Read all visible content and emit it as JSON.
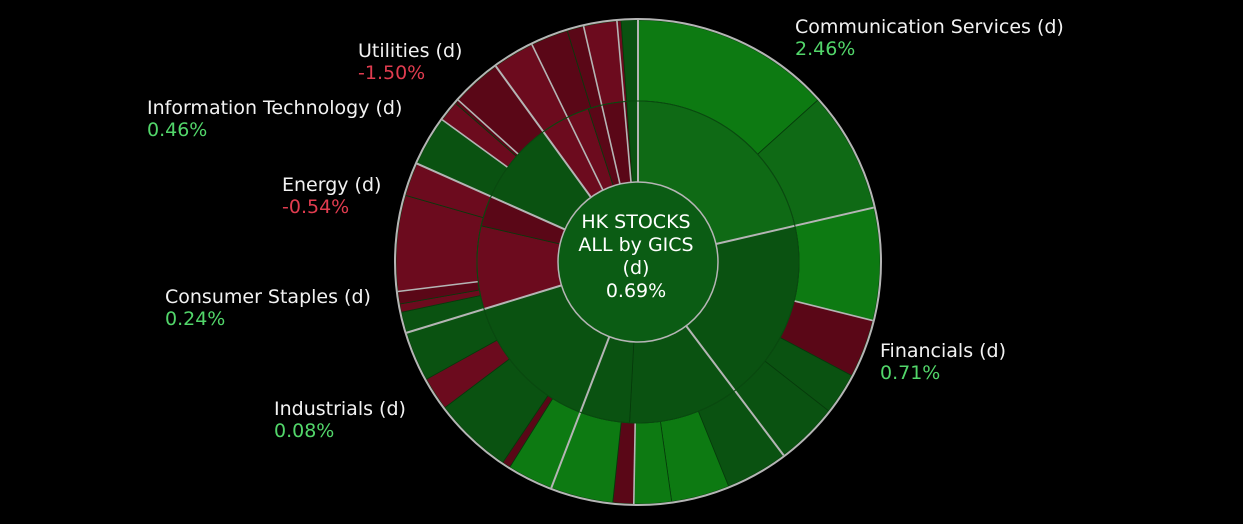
{
  "colors": {
    "positive_text": "#52d66a",
    "negative_text": "#e03c4f",
    "label_text": "#f2f2f2",
    "center_fill": "#0b5c14",
    "gain_strong": "#0d7a12",
    "gain_mid": "#0f6a15",
    "gain_dark": "#0a5211",
    "loss": "#6c0b1e",
    "loss_dark": "#5a0717",
    "divider": "#b5b5b5"
  },
  "chart_data": {
    "type": "sunburst",
    "title": "HK STOCKS ALL by GICS (d)",
    "center": {
      "line1": "HK STOCKS",
      "line2": "ALL by GICS",
      "line3": "(d)",
      "value": "0.69%"
    },
    "sectors": [
      {
        "name": "Communication Services (d)",
        "change": "2.46%",
        "change_value": 2.46
      },
      {
        "name": "Financials (d)",
        "change": "0.71%",
        "change_value": 0.71
      },
      {
        "name": "Industrials (d)",
        "change": "0.08%",
        "change_value": 0.08
      },
      {
        "name": "Consumer Staples (d)",
        "change": "0.24%",
        "change_value": 0.24
      },
      {
        "name": "Energy (d)",
        "change": "-0.54%",
        "change_value": -0.54
      },
      {
        "name": "Information Technology (d)",
        "change": "0.46%",
        "change_value": 0.46
      },
      {
        "name": "Utilities (d)",
        "change": "-1.50%",
        "change_value": -1.5
      }
    ]
  }
}
